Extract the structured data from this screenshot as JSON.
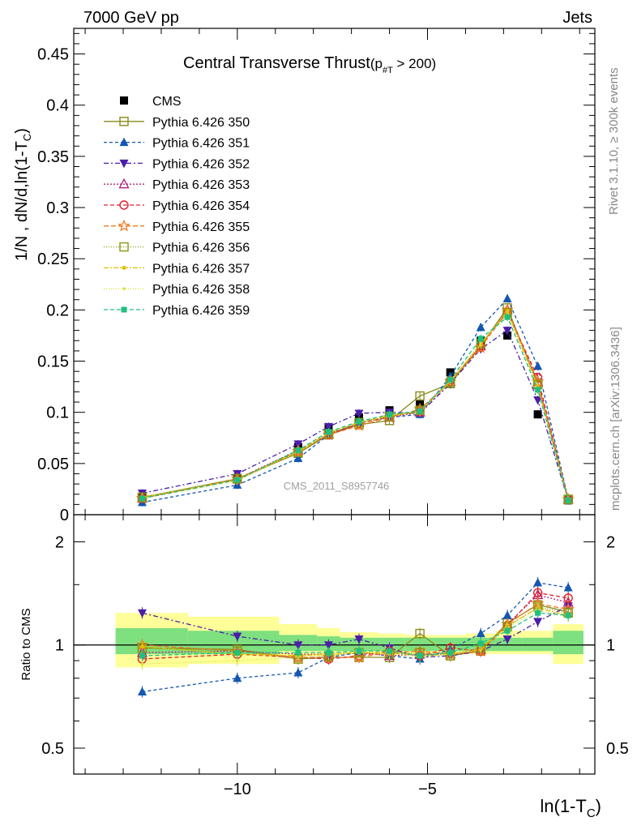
{
  "header": {
    "left": "7000 GeV pp",
    "right": "Jets"
  },
  "side_text": {
    "rivet": "Rivet 3.1.10, ≥ 300k events",
    "mcplots": "mcplots.cern.ch [arXiv:1306.3436]"
  },
  "watermark": "CMS_2011_S8957746",
  "chart_data": [
    {
      "type": "scatter",
      "title": "Central Transverse Thrust",
      "title_sub": "(p",
      "title_sub_index": "#T",
      "title_sub_tail": " > 200)",
      "ylabel": "1/N , dN/d,ln(1-T",
      "ylabel_sub": "C",
      "ylabel_tail": ")",
      "xlabel": "ln(1-T",
      "xlabel_sub": "C",
      "xlabel_tail": ")",
      "xlim": [
        -14.3,
        -0.6
      ],
      "ylim": [
        0,
        0.475
      ],
      "x_ticks": [
        -10,
        -5
      ],
      "x_tick_labels": [
        "−10",
        "−5"
      ],
      "y_ticks": [
        0,
        0.05,
        0.1,
        0.15,
        0.2,
        0.25,
        0.3,
        0.35,
        0.4,
        0.45
      ],
      "y_tick_labels": [
        "0",
        "0.05",
        "0.1",
        "0.15",
        "0.2",
        "0.25",
        "0.3",
        "0.35",
        "0.4",
        "0.45"
      ],
      "x": [
        -12.5,
        -10.0,
        -8.4,
        -7.6,
        -6.8,
        -6.0,
        -5.2,
        -4.4,
        -3.6,
        -2.9,
        -2.1,
        -1.3
      ],
      "series": [
        {
          "name": "CMS",
          "color": "#000000",
          "marker": "square-filled",
          "dash": "none",
          "values": [
            0.017,
            0.036,
            0.066,
            0.085,
            0.095,
            0.102,
            0.108,
            0.139,
            0.17,
            0.175,
            0.098,
            0.014
          ]
        },
        {
          "name": "Pythia 6.426 350",
          "color": "#8a8a1a",
          "marker": "square-open",
          "dash": "solid",
          "values": [
            0.017,
            0.035,
            0.06,
            0.078,
            0.088,
            0.092,
            0.116,
            0.128,
            0.165,
            0.202,
            0.128,
            0.015
          ]
        },
        {
          "name": "Pythia 6.426 351",
          "color": "#1357b0",
          "marker": "triangle-up",
          "dash": "4,3",
          "values": [
            0.012,
            0.029,
            0.055,
            0.078,
            0.09,
            0.095,
            0.098,
            0.135,
            0.183,
            0.211,
            0.145,
            0.015
          ]
        },
        {
          "name": "Pythia 6.426 352",
          "color": "#4b1fa8",
          "marker": "triangle-down",
          "dash": "6,3,2,3",
          "values": [
            0.021,
            0.04,
            0.069,
            0.086,
            0.099,
            0.1,
            0.099,
            0.128,
            0.162,
            0.18,
            0.112,
            0.014
          ]
        },
        {
          "name": "Pythia 6.426 353",
          "color": "#b0207a",
          "marker": "triangle-open",
          "dash": "2,2",
          "values": [
            0.016,
            0.035,
            0.063,
            0.079,
            0.09,
            0.095,
            0.1,
            0.13,
            0.165,
            0.2,
            0.13,
            0.015
          ]
        },
        {
          "name": "Pythia 6.426 354",
          "color": "#e0202a",
          "marker": "circle-open",
          "dash": "5,3",
          "values": [
            0.016,
            0.034,
            0.062,
            0.078,
            0.089,
            0.096,
            0.101,
            0.131,
            0.164,
            0.198,
            0.134,
            0.015
          ]
        },
        {
          "name": "Pythia 6.426 355",
          "color": "#f07820",
          "marker": "star-open",
          "dash": "6,3",
          "values": [
            0.016,
            0.035,
            0.062,
            0.078,
            0.087,
            0.095,
            0.103,
            0.13,
            0.163,
            0.2,
            0.13,
            0.015
          ]
        },
        {
          "name": "Pythia 6.426 356",
          "color": "#8a9a10",
          "marker": "square-open",
          "dash": "1,2",
          "values": [
            0.017,
            0.035,
            0.061,
            0.079,
            0.09,
            0.096,
            0.102,
            0.129,
            0.167,
            0.197,
            0.127,
            0.015
          ]
        },
        {
          "name": "Pythia 6.426 357",
          "color": "#e0c000",
          "marker": "dot",
          "dash": "6,2,2,2",
          "values": [
            0.017,
            0.034,
            0.062,
            0.08,
            0.09,
            0.097,
            0.101,
            0.13,
            0.166,
            0.199,
            0.125,
            0.014
          ]
        },
        {
          "name": "Pythia 6.426 358",
          "color": "#d8e040",
          "marker": "dot-small",
          "dash": "1,2",
          "values": [
            0.016,
            0.033,
            0.061,
            0.08,
            0.09,
            0.096,
            0.1,
            0.131,
            0.168,
            0.196,
            0.124,
            0.014
          ]
        },
        {
          "name": "Pythia 6.426 359",
          "color": "#20c080",
          "marker": "square-filled-small",
          "dash": "5,3",
          "values": [
            0.016,
            0.034,
            0.063,
            0.081,
            0.091,
            0.098,
            0.101,
            0.132,
            0.172,
            0.193,
            0.122,
            0.014
          ]
        }
      ]
    },
    {
      "type": "scatter",
      "ylabel": "Ratio to CMS",
      "ylim": [
        0.42,
        2.4
      ],
      "y_scale": "log",
      "y_ticks": [
        0.5,
        1,
        2
      ],
      "y_tick_labels": [
        "0.5",
        "1",
        "2"
      ],
      "reference_line": 1,
      "bands": {
        "x_edges": [
          -13.2,
          -11.3,
          -8.9,
          -7.9,
          -7.3,
          -6.3,
          -5.6,
          -4.8,
          -4.0,
          -3.2,
          -2.5,
          -1.7,
          -0.9
        ],
        "outer_lo": [
          0.86,
          0.88,
          0.93,
          0.93,
          0.94,
          0.94,
          0.94,
          0.94,
          0.94,
          0.94,
          0.94,
          0.88
        ],
        "outer_hi": [
          1.24,
          1.21,
          1.15,
          1.12,
          1.09,
          1.08,
          1.07,
          1.07,
          1.08,
          1.1,
          1.1,
          1.15
        ],
        "inner_lo": [
          0.94,
          0.94,
          0.96,
          0.96,
          0.96,
          0.96,
          0.96,
          0.96,
          0.96,
          0.96,
          0.96,
          0.94
        ],
        "inner_hi": [
          1.12,
          1.1,
          1.07,
          1.06,
          1.05,
          1.05,
          1.05,
          1.05,
          1.05,
          1.05,
          1.05,
          1.1
        ],
        "outer_color": "#ffff99",
        "inner_color": "#7fe07f"
      },
      "series": [
        {
          "name": "Pythia 6.426 350",
          "values": [
            0.98,
            0.97,
            0.91,
            0.92,
            0.92,
            0.92,
            1.08,
            0.93,
            0.96,
            1.16,
            1.31,
            1.25
          ]
        },
        {
          "name": "Pythia 6.426 351",
          "values": [
            0.73,
            0.8,
            0.83,
            0.92,
            0.95,
            0.93,
            0.91,
            0.97,
            1.08,
            1.22,
            1.52,
            1.47
          ]
        },
        {
          "name": "Pythia 6.426 352",
          "values": [
            1.24,
            1.06,
            1.0,
            1.0,
            1.04,
            0.98,
            0.92,
            0.93,
            0.96,
            1.04,
            1.17,
            1.3
          ]
        },
        {
          "name": "Pythia 6.426 353",
          "values": [
            0.95,
            0.96,
            0.94,
            0.94,
            0.95,
            0.93,
            0.94,
            0.94,
            0.97,
            1.15,
            1.4,
            1.33
          ]
        },
        {
          "name": "Pythia 6.426 354",
          "values": [
            0.91,
            0.94,
            0.92,
            0.91,
            0.93,
            0.96,
            0.93,
            0.98,
            0.96,
            1.14,
            1.42,
            1.37
          ]
        },
        {
          "name": "Pythia 6.426 355",
          "values": [
            1.0,
            0.96,
            0.92,
            0.92,
            0.92,
            0.95,
            0.96,
            0.94,
            0.96,
            1.15,
            1.32,
            1.27
          ]
        },
        {
          "name": "Pythia 6.426 356",
          "values": [
            0.98,
            0.96,
            0.91,
            0.93,
            0.95,
            0.94,
            0.95,
            0.93,
            0.98,
            1.13,
            1.29,
            1.24
          ]
        },
        {
          "name": "Pythia 6.426 357",
          "values": [
            0.99,
            0.94,
            0.93,
            0.94,
            0.95,
            0.95,
            0.93,
            0.94,
            0.97,
            1.14,
            1.28,
            1.22
          ]
        },
        {
          "name": "Pythia 6.426 358",
          "values": [
            0.88,
            0.9,
            0.92,
            0.94,
            0.95,
            0.94,
            0.92,
            0.94,
            0.99,
            1.12,
            1.26,
            1.21
          ]
        },
        {
          "name": "Pythia 6.426 359",
          "values": [
            0.93,
            0.95,
            0.95,
            0.95,
            0.96,
            0.96,
            0.93,
            0.95,
            1.01,
            1.1,
            1.24,
            1.22
          ]
        }
      ]
    }
  ]
}
